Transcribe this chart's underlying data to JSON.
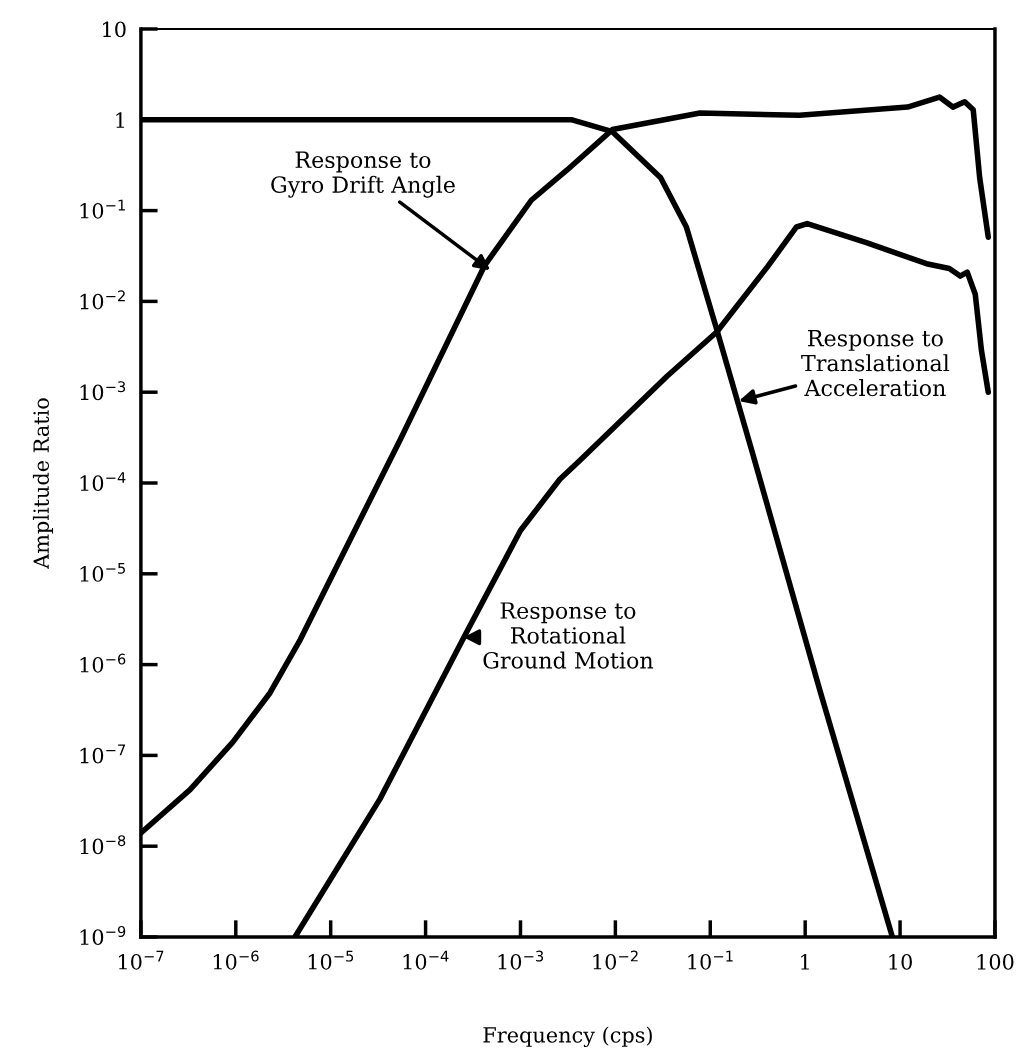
{
  "chart_data": {
    "type": "line",
    "xlabel": "Frequency (cps)",
    "ylabel": "Amplitude Ratio",
    "log": "xy",
    "grid": false,
    "legend": false,
    "marker": "none",
    "line_style": "solid",
    "xlim": [
      1e-07,
      100
    ],
    "ylim": [
      1e-09,
      10
    ],
    "xticks": [
      {
        "value": 1e-07,
        "label": "10$^{−7}$"
      },
      {
        "value": 1e-06,
        "label": "10$^{−6}$"
      },
      {
        "value": 1e-05,
        "label": "10$^{−5}$"
      },
      {
        "value": 0.0001,
        "label": "10$^{−4}$"
      },
      {
        "value": 0.001,
        "label": "10$^{−3}$"
      },
      {
        "value": 0.01,
        "label": "10$^{−2}$"
      },
      {
        "value": 0.1,
        "label": "10$^{−1}$"
      },
      1,
      10,
      100
    ],
    "yticks": [
      {
        "value": 1e-09,
        "label": "10$^{−9}$"
      },
      {
        "value": 1e-08,
        "label": "10$^{−8}$"
      },
      {
        "value": 1e-07,
        "label": "10$^{−7}$"
      },
      {
        "value": 1e-06,
        "label": "10$^{−6}$"
      },
      {
        "value": 1e-05,
        "label": "10$^{−5}$"
      },
      {
        "value": 0.0001,
        "label": "10$^{−4}$"
      },
      {
        "value": 0.001,
        "label": "10$^{−3}$"
      },
      {
        "value": 0.01,
        "label": "10$^{−2}$"
      },
      {
        "value": 0.1,
        "label": "10$^{−1}$"
      },
      1,
      10
    ],
    "series": [
      {
        "color": "#000000",
        "x": [
          1e-07,
          3.3e-07,
          9.3e-07,
          2.3e-06,
          4.8e-06,
          9.8e-06,
          5.4e-05,
          0.00042,
          0.0013,
          0.0031,
          0.0093,
          0.078,
          0.87,
          12,
          26,
          36,
          48,
          59,
          69,
          85
        ],
        "values": [
          1.4e-08,
          4.2e-08,
          1.4e-07,
          4.9e-07,
          1.9e-06,
          8.5e-06,
          0.0003,
          0.025,
          0.13,
          0.28,
          0.78,
          1.19,
          1.12,
          1.38,
          1.78,
          1.38,
          1.58,
          1.29,
          0.23,
          0.051
        ]
      },
      {
        "color": "#000000",
        "x": [
          1e-07,
          1e-05,
          0.001,
          0.0035,
          0.0093,
          0.03,
          0.056,
          0.117,
          0.28,
          1.43,
          8.3
        ],
        "values": [
          1,
          1,
          1,
          1,
          0.74,
          0.23,
          0.066,
          0.0049,
          0.00021,
          5.2e-07,
          1e-09
        ]
      },
      {
        "color": "#000000",
        "x": [
          4.2e-06,
          3.3e-05,
          0.00026,
          0.001,
          0.0026,
          0.0043,
          0.035,
          0.117,
          0.4,
          0.81,
          1.05,
          4.5,
          19,
          33,
          43,
          51,
          62,
          72,
          85
        ],
        "values": [
          1e-09,
          3.3e-08,
          2.1e-06,
          3e-05,
          0.00011,
          0.00018,
          0.0015,
          0.0046,
          0.024,
          0.066,
          0.072,
          0.044,
          0.026,
          0.023,
          0.019,
          0.021,
          0.012,
          0.0029,
          0.001
        ]
      }
    ],
    "annotations": [
      {
        "text": "Response to\nGyro Drift Angle",
        "x": 0.00048,
        "y": 0.022
      },
      {
        "text": "Response to\nTranslational\nAcceleration",
        "x": 0.2,
        "y": 0.0008
      },
      {
        "text": "Response to\nRotational\nGround Motion",
        "x": 0.00025,
        "y": 2e-06
      }
    ]
  }
}
